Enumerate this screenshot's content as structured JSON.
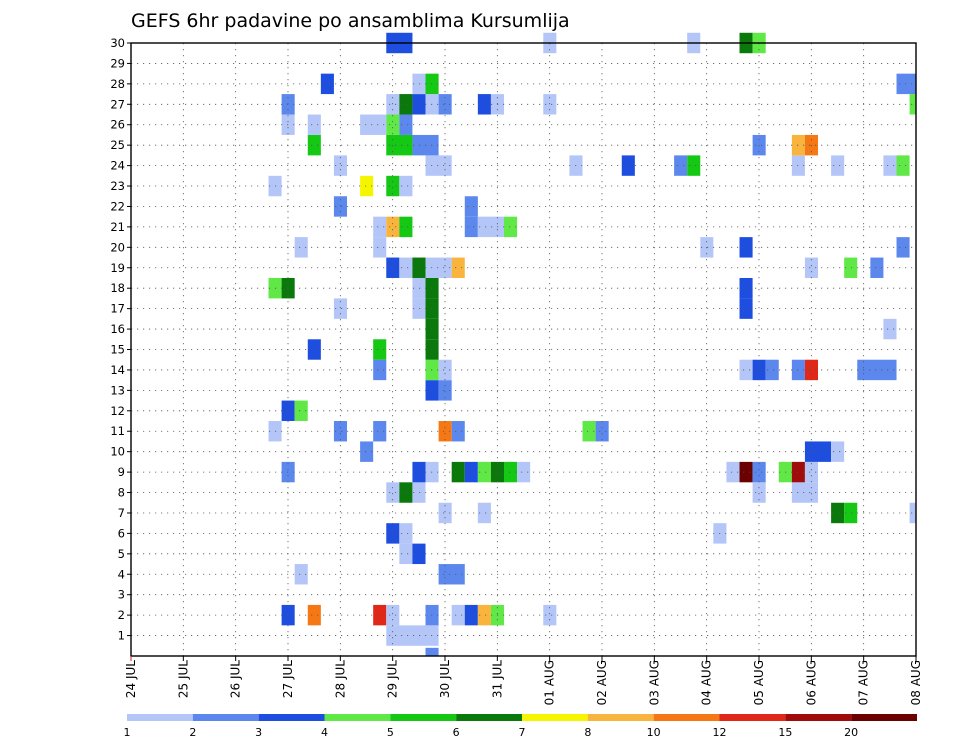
{
  "title": "GEFS 6hr padavine po ansamblima Kursumlija",
  "chart_data": {
    "type": "heatmap",
    "title": "GEFS 6hr padavine po ansamblima Kursumlija",
    "x_tick_labels": [
      "24 JUL",
      "25 JUL",
      "26 JUL",
      "27 JUL",
      "28 JUL",
      "29 JUL",
      "30 JUL",
      "31 JUL",
      "01 AUG",
      "02 AUG",
      "03 AUG",
      "04 AUG",
      "05 AUG",
      "06 AUG",
      "07 AUG",
      "08 AUG"
    ],
    "x_range": [
      "24 JUL 00Z",
      "08 AUG 00Z"
    ],
    "x_step": "6hr",
    "y_tick_labels": [
      "1",
      "2",
      "3",
      "4",
      "5",
      "6",
      "7",
      "8",
      "9",
      "10",
      "11",
      "12",
      "13",
      "14",
      "15",
      "16",
      "17",
      "18",
      "19",
      "20",
      "21",
      "22",
      "23",
      "24",
      "25",
      "26",
      "27",
      "28",
      "29",
      "30"
    ],
    "ylim": [
      0,
      30
    ],
    "grid": true,
    "colorbar": {
      "labels": [
        "1",
        "2",
        "3",
        "4",
        "5",
        "6",
        "7",
        "8",
        "10",
        "12",
        "15",
        "20"
      ],
      "colors": [
        "#b4c6f8",
        "#5c88ee",
        "#1e4ee0",
        "#60e846",
        "#14c814",
        "#0a780a",
        "#f5f500",
        "#f8b43c",
        "#f57814",
        "#e02818",
        "#a00c0c",
        "#6a0000"
      ]
    },
    "cells": [
      [
        "29 JUL 18Z",
        "29 JUL 18Z",
        0,
        2
      ],
      [
        "29 JUL 00Z",
        "29 JUL 18Z",
        1,
        1
      ],
      [
        "27 JUL 00Z",
        "27 JUL 00Z",
        2,
        3
      ],
      [
        "27 JUL 12Z",
        "27 JUL 12Z",
        2,
        11
      ],
      [
        "28 JUL 18Z",
        "28 JUL 18Z",
        2,
        12
      ],
      [
        "29 JUL 00Z",
        "29 JUL 00Z",
        2,
        1
      ],
      [
        "29 JUL 18Z",
        "29 JUL 18Z",
        2,
        2
      ],
      [
        "30 JUL 06Z",
        "30 JUL 06Z",
        2,
        1
      ],
      [
        "30 JUL 12Z",
        "30 JUL 12Z",
        2,
        3
      ],
      [
        "30 JUL 18Z",
        "30 JUL 18Z",
        2,
        8
      ],
      [
        "31 JUL 00Z",
        "31 JUL 00Z",
        2,
        4
      ],
      [
        "01 AUG 00Z",
        "01 AUG 00Z",
        2,
        1
      ],
      [
        "27 JUL 06Z",
        "27 JUL 06Z",
        4,
        1
      ],
      [
        "30 JUL 00Z",
        "30 JUL 06Z",
        4,
        2
      ],
      [
        "29 JUL 06Z",
        "29 JUL 06Z",
        5,
        1
      ],
      [
        "29 JUL 12Z",
        "29 JUL 12Z",
        5,
        3
      ],
      [
        "29 JUL 00Z",
        "29 JUL 00Z",
        6,
        3
      ],
      [
        "29 JUL 06Z",
        "29 JUL 06Z",
        6,
        1
      ],
      [
        "04 AUG 06Z",
        "04 AUG 06Z",
        6,
        1
      ],
      [
        "30 JUL 00Z",
        "30 JUL 00Z",
        7,
        1
      ],
      [
        "30 JUL 18Z",
        "30 JUL 18Z",
        7,
        1
      ],
      [
        "06 AUG 12Z",
        "06 AUG 12Z",
        7,
        6
      ],
      [
        "06 AUG 18Z",
        "06 AUG 18Z",
        7,
        5
      ],
      [
        "08 AUG 00Z",
        "08 AUG 00Z",
        7,
        1
      ],
      [
        "29 JUL 00Z",
        "29 JUL 00Z",
        8,
        1
      ],
      [
        "29 JUL 06Z",
        "29 JUL 06Z",
        8,
        6
      ],
      [
        "29 JUL 12Z",
        "29 JUL 12Z",
        8,
        1
      ],
      [
        "05 AUG 00Z",
        "05 AUG 00Z",
        8,
        1
      ],
      [
        "05 AUG 18Z",
        "06 AUG 00Z",
        8,
        1
      ],
      [
        "27 JUL 00Z",
        "27 JUL 00Z",
        9,
        2
      ],
      [
        "29 JUL 12Z",
        "29 JUL 12Z",
        9,
        3
      ],
      [
        "29 JUL 18Z",
        "29 JUL 18Z",
        9,
        1
      ],
      [
        "30 JUL 06Z",
        "30 JUL 06Z",
        9,
        6
      ],
      [
        "30 JUL 12Z",
        "30 JUL 12Z",
        9,
        3
      ],
      [
        "30 JUL 18Z",
        "30 JUL 18Z",
        9,
        4
      ],
      [
        "31 JUL 00Z",
        "31 JUL 00Z",
        9,
        6
      ],
      [
        "31 JUL 06Z",
        "31 JUL 06Z",
        9,
        5
      ],
      [
        "31 JUL 12Z",
        "31 JUL 12Z",
        9,
        1
      ],
      [
        "04 AUG 12Z",
        "04 AUG 12Z",
        9,
        1
      ],
      [
        "04 AUG 18Z",
        "04 AUG 18Z",
        9,
        20
      ],
      [
        "05 AUG 00Z",
        "05 AUG 00Z",
        9,
        2
      ],
      [
        "05 AUG 12Z",
        "05 AUG 12Z",
        9,
        4
      ],
      [
        "05 AUG 18Z",
        "05 AUG 18Z",
        9,
        15
      ],
      [
        "06 AUG 00Z",
        "06 AUG 00Z",
        9,
        1
      ],
      [
        "28 JUL 12Z",
        "28 JUL 12Z",
        10,
        2
      ],
      [
        "06 AUG 00Z",
        "06 AUG 06Z",
        10,
        3
      ],
      [
        "06 AUG 12Z",
        "06 AUG 12Z",
        10,
        1
      ],
      [
        "26 JUL 18Z",
        "26 JUL 18Z",
        11,
        1
      ],
      [
        "28 JUL 00Z",
        "28 JUL 00Z",
        11,
        2
      ],
      [
        "28 JUL 18Z",
        "28 JUL 18Z",
        11,
        2
      ],
      [
        "30 JUL 00Z",
        "30 JUL 00Z",
        11,
        10
      ],
      [
        "30 JUL 06Z",
        "30 JUL 06Z",
        11,
        2
      ],
      [
        "01 AUG 18Z",
        "01 AUG 18Z",
        11,
        4
      ],
      [
        "02 AUG 00Z",
        "02 AUG 00Z",
        11,
        2
      ],
      [
        "27 JUL 00Z",
        "27 JUL 00Z",
        12,
        3
      ],
      [
        "27 JUL 06Z",
        "27 JUL 06Z",
        12,
        4
      ],
      [
        "29 JUL 18Z",
        "29 JUL 18Z",
        13,
        3
      ],
      [
        "30 JUL 00Z",
        "30 JUL 00Z",
        13,
        2
      ],
      [
        "28 JUL 18Z",
        "28 JUL 18Z",
        14,
        2
      ],
      [
        "29 JUL 18Z",
        "29 JUL 18Z",
        14,
        4
      ],
      [
        "30 JUL 00Z",
        "30 JUL 00Z",
        14,
        1
      ],
      [
        "04 AUG 18Z",
        "04 AUG 18Z",
        14,
        1
      ],
      [
        "05 AUG 00Z",
        "05 AUG 00Z",
        14,
        3
      ],
      [
        "05 AUG 06Z",
        "05 AUG 06Z",
        14,
        2
      ],
      [
        "05 AUG 18Z",
        "05 AUG 18Z",
        14,
        2
      ],
      [
        "06 AUG 00Z",
        "06 AUG 00Z",
        14,
        12
      ],
      [
        "07 AUG 00Z",
        "07 AUG 12Z",
        14,
        2
      ],
      [
        "27 JUL 12Z",
        "27 JUL 12Z",
        15,
        3
      ],
      [
        "28 JUL 18Z",
        "28 JUL 18Z",
        15,
        5
      ],
      [
        "29 JUL 18Z",
        "29 JUL 18Z",
        15,
        6
      ],
      [
        "29 JUL 18Z",
        "29 JUL 18Z",
        16,
        6
      ],
      [
        "07 AUG 12Z",
        "07 AUG 12Z",
        16,
        1
      ],
      [
        "28 JUL 00Z",
        "28 JUL 00Z",
        17,
        1
      ],
      [
        "29 JUL 12Z",
        "29 JUL 12Z",
        17,
        1
      ],
      [
        "29 JUL 18Z",
        "29 JUL 18Z",
        17,
        6
      ],
      [
        "04 AUG 18Z",
        "04 AUG 18Z",
        17,
        3
      ],
      [
        "26 JUL 18Z",
        "26 JUL 18Z",
        18,
        4
      ],
      [
        "27 JUL 00Z",
        "27 JUL 00Z",
        18,
        6
      ],
      [
        "29 JUL 12Z",
        "29 JUL 12Z",
        18,
        1
      ],
      [
        "29 JUL 18Z",
        "29 JUL 18Z",
        18,
        6
      ],
      [
        "04 AUG 18Z",
        "04 AUG 18Z",
        18,
        3
      ],
      [
        "29 JUL 00Z",
        "29 JUL 00Z",
        19,
        3
      ],
      [
        "29 JUL 06Z",
        "29 JUL 06Z",
        19,
        1
      ],
      [
        "29 JUL 12Z",
        "29 JUL 12Z",
        19,
        6
      ],
      [
        "29 JUL 18Z",
        "30 JUL 00Z",
        19,
        1
      ],
      [
        "30 JUL 06Z",
        "30 JUL 06Z",
        19,
        8
      ],
      [
        "06 AUG 00Z",
        "06 AUG 00Z",
        19,
        1
      ],
      [
        "06 AUG 18Z",
        "06 AUG 18Z",
        19,
        4
      ],
      [
        "07 AUG 06Z",
        "07 AUG 06Z",
        19,
        2
      ],
      [
        "27 JUL 06Z",
        "27 JUL 06Z",
        20,
        1
      ],
      [
        "28 JUL 18Z",
        "28 JUL 18Z",
        20,
        1
      ],
      [
        "04 AUG 00Z",
        "04 AUG 00Z",
        20,
        1
      ],
      [
        "04 AUG 18Z",
        "04 AUG 18Z",
        20,
        3
      ],
      [
        "07 AUG 18Z",
        "07 AUG 18Z",
        20,
        2
      ],
      [
        "28 JUL 18Z",
        "28 JUL 18Z",
        21,
        1
      ],
      [
        "29 JUL 00Z",
        "29 JUL 00Z",
        21,
        8
      ],
      [
        "29 JUL 06Z",
        "29 JUL 06Z",
        21,
        5
      ],
      [
        "30 JUL 12Z",
        "30 JUL 12Z",
        21,
        2
      ],
      [
        "30 JUL 18Z",
        "31 JUL 00Z",
        21,
        1
      ],
      [
        "31 JUL 06Z",
        "31 JUL 06Z",
        21,
        4
      ],
      [
        "28 JUL 00Z",
        "28 JUL 00Z",
        22,
        2
      ],
      [
        "30 JUL 12Z",
        "30 JUL 12Z",
        22,
        2
      ],
      [
        "26 JUL 18Z",
        "26 JUL 18Z",
        23,
        1
      ],
      [
        "28 JUL 12Z",
        "28 JUL 12Z",
        23,
        7
      ],
      [
        "29 JUL 00Z",
        "29 JUL 00Z",
        23,
        5
      ],
      [
        "29 JUL 06Z",
        "29 JUL 06Z",
        23,
        1
      ],
      [
        "28 JUL 00Z",
        "28 JUL 00Z",
        24,
        1
      ],
      [
        "29 JUL 18Z",
        "30 JUL 00Z",
        24,
        1
      ],
      [
        "01 AUG 12Z",
        "01 AUG 12Z",
        24,
        1
      ],
      [
        "02 AUG 12Z",
        "02 AUG 12Z",
        24,
        3
      ],
      [
        "03 AUG 12Z",
        "03 AUG 12Z",
        24,
        2
      ],
      [
        "03 AUG 18Z",
        "03 AUG 18Z",
        24,
        5
      ],
      [
        "05 AUG 18Z",
        "05 AUG 18Z",
        24,
        1
      ],
      [
        "06 AUG 12Z",
        "06 AUG 12Z",
        24,
        1
      ],
      [
        "07 AUG 12Z",
        "07 AUG 12Z",
        24,
        1
      ],
      [
        "07 AUG 18Z",
        "07 AUG 18Z",
        24,
        4
      ],
      [
        "27 JUL 12Z",
        "27 JUL 12Z",
        25,
        5
      ],
      [
        "29 JUL 00Z",
        "29 JUL 06Z",
        25,
        5
      ],
      [
        "29 JUL 12Z",
        "29 JUL 18Z",
        25,
        2
      ],
      [
        "05 AUG 00Z",
        "05 AUG 00Z",
        25,
        2
      ],
      [
        "05 AUG 18Z",
        "05 AUG 18Z",
        25,
        8
      ],
      [
        "06 AUG 00Z",
        "06 AUG 00Z",
        25,
        10
      ],
      [
        "27 JUL 00Z",
        "27 JUL 00Z",
        26,
        1
      ],
      [
        "27 JUL 12Z",
        "27 JUL 12Z",
        26,
        1
      ],
      [
        "28 JUL 12Z",
        "28 JUL 18Z",
        26,
        1
      ],
      [
        "29 JUL 00Z",
        "29 JUL 00Z",
        26,
        4
      ],
      [
        "29 JUL 06Z",
        "29 JUL 06Z",
        26,
        2
      ],
      [
        "27 JUL 00Z",
        "27 JUL 00Z",
        27,
        2
      ],
      [
        "29 JUL 00Z",
        "29 JUL 00Z",
        27,
        1
      ],
      [
        "29 JUL 06Z",
        "29 JUL 06Z",
        27,
        6
      ],
      [
        "29 JUL 12Z",
        "29 JUL 12Z",
        27,
        3
      ],
      [
        "29 JUL 18Z",
        "29 JUL 18Z",
        27,
        1
      ],
      [
        "30 JUL 00Z",
        "30 JUL 00Z",
        27,
        2
      ],
      [
        "30 JUL 18Z",
        "30 JUL 18Z",
        27,
        3
      ],
      [
        "31 JUL 00Z",
        "31 JUL 00Z",
        27,
        1
      ],
      [
        "01 AUG 00Z",
        "01 AUG 00Z",
        27,
        1
      ],
      [
        "08 AUG 00Z",
        "08 AUG 00Z",
        27,
        4
      ],
      [
        "27 JUL 18Z",
        "27 JUL 18Z",
        28,
        3
      ],
      [
        "29 JUL 12Z",
        "29 JUL 12Z",
        28,
        1
      ],
      [
        "29 JUL 18Z",
        "29 JUL 18Z",
        28,
        5
      ],
      [
        "07 AUG 18Z",
        "08 AUG 00Z",
        28,
        2
      ],
      [
        "29 JUL 00Z",
        "29 JUL 06Z",
        30,
        3
      ],
      [
        "01 AUG 00Z",
        "01 AUG 00Z",
        30,
        1
      ],
      [
        "03 AUG 18Z",
        "03 AUG 18Z",
        30,
        1
      ],
      [
        "04 AUG 18Z",
        "04 AUG 18Z",
        30,
        6
      ],
      [
        "05 AUG 00Z",
        "05 AUG 00Z",
        30,
        4
      ]
    ]
  }
}
